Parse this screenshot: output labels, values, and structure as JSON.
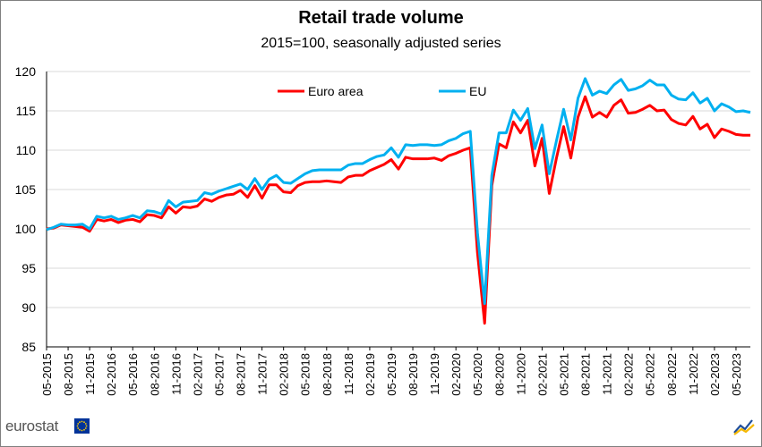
{
  "chart_data": {
    "type": "line",
    "title": "Retail trade volume",
    "subtitle": "2015=100, seasonally adjusted series",
    "xlabel": "",
    "ylabel": "",
    "ylim": [
      85,
      120
    ],
    "yticks": [
      85,
      90,
      95,
      100,
      105,
      110,
      115,
      120
    ],
    "grid": "horizontal",
    "legend_position": "top-center",
    "x_tick_labels": [
      "05-2015",
      "08-2015",
      "11-2015",
      "02-2016",
      "05-2016",
      "08-2016",
      "11-2016",
      "02-2017",
      "05-2017",
      "08-2017",
      "11-2017",
      "02-2018",
      "05-2018",
      "08-2018",
      "11-2018",
      "02-2019",
      "05-2019",
      "08-2019",
      "11-2019",
      "02-2020",
      "05-2020",
      "08-2020",
      "11-2020",
      "02-2021",
      "05-2021",
      "08-2021",
      "11-2021",
      "02-2022",
      "05-2022",
      "08-2022",
      "11-2022",
      "02-2023",
      "05-2023"
    ],
    "series": [
      {
        "name": "Euro area",
        "color": "#ff0000",
        "values": [
          100.0,
          100.1,
          100.5,
          100.4,
          100.3,
          100.2,
          99.7,
          101.2,
          101.0,
          101.2,
          100.8,
          101.1,
          101.2,
          100.9,
          101.8,
          101.7,
          101.4,
          102.8,
          102.0,
          102.8,
          102.7,
          102.9,
          103.8,
          103.5,
          104.0,
          104.3,
          104.4,
          104.9,
          104.0,
          105.5,
          103.9,
          105.6,
          105.6,
          104.7,
          104.6,
          105.5,
          105.9,
          106.0,
          106.0,
          106.1,
          106.0,
          105.9,
          106.6,
          106.8,
          106.8,
          107.4,
          107.8,
          108.2,
          108.8,
          107.6,
          109.1,
          108.9,
          108.9,
          108.9,
          109.0,
          108.7,
          109.3,
          109.6,
          110.0,
          110.3,
          97.0,
          88.0,
          105.5,
          110.8,
          110.3,
          113.6,
          112.2,
          113.8,
          108.0,
          111.5,
          104.5,
          109.0,
          113.0,
          109.0,
          114.2,
          116.8,
          114.2,
          114.8,
          114.2,
          115.7,
          116.4,
          114.7,
          114.8,
          115.2,
          115.7,
          115.0,
          115.1,
          113.9,
          113.4,
          113.2,
          114.3,
          112.7,
          113.3,
          111.6,
          112.7,
          112.4,
          112.0,
          111.9,
          111.9
        ]
      },
      {
        "name": "EU",
        "color": "#00b0f0",
        "values": [
          99.9,
          100.2,
          100.6,
          100.5,
          100.5,
          100.6,
          100.0,
          101.6,
          101.4,
          101.6,
          101.2,
          101.4,
          101.7,
          101.4,
          102.3,
          102.2,
          101.9,
          103.6,
          102.8,
          103.4,
          103.5,
          103.6,
          104.6,
          104.4,
          104.8,
          105.1,
          105.4,
          105.7,
          105.0,
          106.4,
          105.0,
          106.3,
          106.8,
          105.9,
          105.8,
          106.4,
          107.0,
          107.4,
          107.5,
          107.5,
          107.5,
          107.5,
          108.1,
          108.3,
          108.3,
          108.8,
          109.2,
          109.4,
          110.3,
          109.1,
          110.7,
          110.6,
          110.7,
          110.7,
          110.6,
          110.7,
          111.2,
          111.5,
          112.1,
          112.4,
          99.5,
          90.5,
          106.8,
          112.2,
          112.2,
          115.1,
          113.8,
          115.3,
          110.2,
          113.2,
          107.0,
          111.2,
          115.2,
          111.3,
          116.6,
          119.1,
          117.0,
          117.5,
          117.2,
          118.3,
          119.0,
          117.6,
          117.8,
          118.2,
          118.9,
          118.3,
          118.3,
          117.0,
          116.5,
          116.4,
          117.3,
          116.0,
          116.6,
          115.0,
          115.9,
          115.5,
          114.9,
          115.0,
          114.8
        ]
      }
    ]
  },
  "footer": {
    "logo_text": "eurostat",
    "flag_icon": "eu-flag-icon",
    "corner_icon": "eurostat-corner-icon"
  }
}
